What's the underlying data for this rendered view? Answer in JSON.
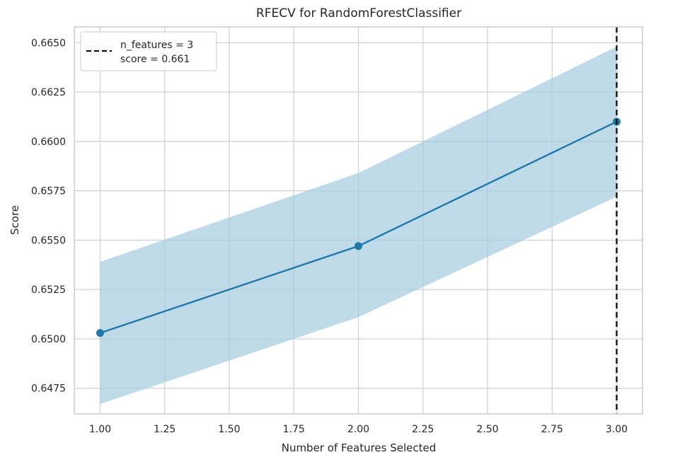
{
  "chart_data": {
    "type": "line",
    "title": "RFECV for RandomForestClassifier",
    "xlabel": "Number of Features Selected",
    "ylabel": "Score",
    "xlim": [
      0.9,
      3.1
    ],
    "ylim": [
      0.6462,
      0.6658
    ],
    "xticks": [
      1.0,
      1.25,
      1.5,
      1.75,
      2.0,
      2.25,
      2.5,
      2.75,
      3.0
    ],
    "xtick_labels": [
      "1.00",
      "1.25",
      "1.50",
      "1.75",
      "2.00",
      "2.25",
      "2.50",
      "2.75",
      "3.00"
    ],
    "yticks": [
      0.6475,
      0.65,
      0.6525,
      0.655,
      0.6575,
      0.66,
      0.6625,
      0.665
    ],
    "ytick_labels": [
      "0.6475",
      "0.6500",
      "0.6525",
      "0.6550",
      "0.6575",
      "0.6600",
      "0.6625",
      "0.6650"
    ],
    "grid": true,
    "series": [
      {
        "x": [
          1,
          2,
          3
        ],
        "values": [
          0.6503,
          0.6547,
          0.661
        ],
        "lower": [
          0.6467,
          0.6511,
          0.6572
        ],
        "upper": [
          0.6539,
          0.6584,
          0.6648
        ],
        "color": "#1f78a8",
        "band_color": "#a6cde2"
      }
    ],
    "vline": {
      "x": 3,
      "style": "dashed",
      "color": "#111111"
    },
    "legend": {
      "position": "top-left",
      "entries": [
        "n_features = 3",
        "score = 0.661"
      ]
    }
  }
}
